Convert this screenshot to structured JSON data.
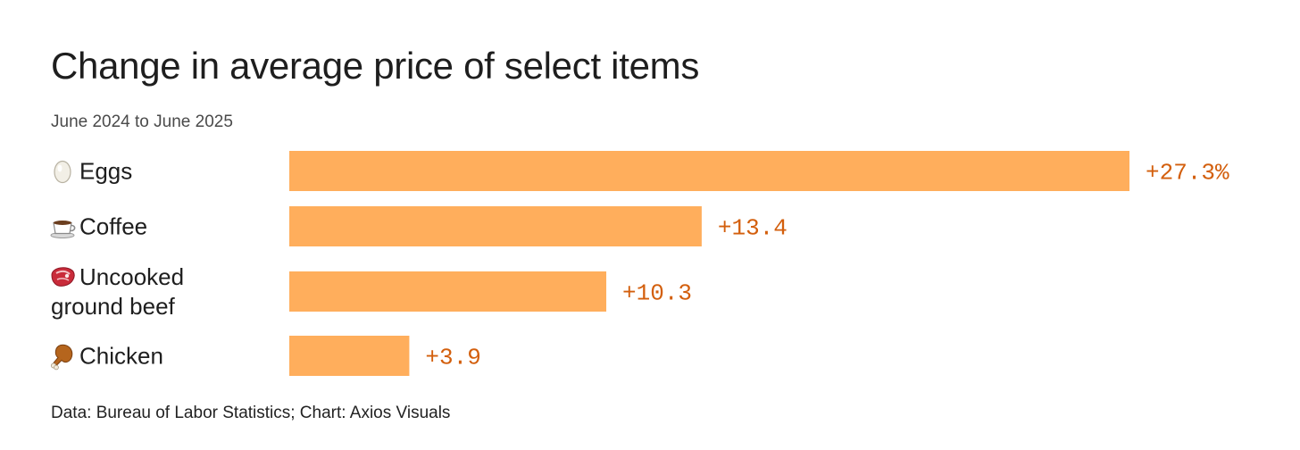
{
  "accent_color": "#ffae5c",
  "value_color": "#d35f0d",
  "chart_data": {
    "type": "bar",
    "orientation": "horizontal",
    "title": "Change in average price of select items",
    "subtitle": "June 2024 to June 2025",
    "categories": [
      "Eggs",
      "Coffee",
      "Uncooked ground beef",
      "Chicken"
    ],
    "category_icons": [
      "egg-icon",
      "coffee-icon",
      "meat-icon",
      "poultry-leg-icon"
    ],
    "category_label_lines": [
      [
        "Eggs"
      ],
      [
        "Coffee"
      ],
      [
        "Uncooked",
        "ground beef"
      ],
      [
        "Chicken"
      ]
    ],
    "values": [
      27.3,
      13.4,
      10.3,
      3.9
    ],
    "data_labels": [
      "+27.3%",
      "+13.4",
      "+10.3",
      "+3.9"
    ],
    "unit": "%",
    "xlim": [
      0,
      27.3
    ],
    "grid": false,
    "legend": "none"
  },
  "source": "Data: Bureau of Labor Statistics; Chart: Axios Visuals"
}
